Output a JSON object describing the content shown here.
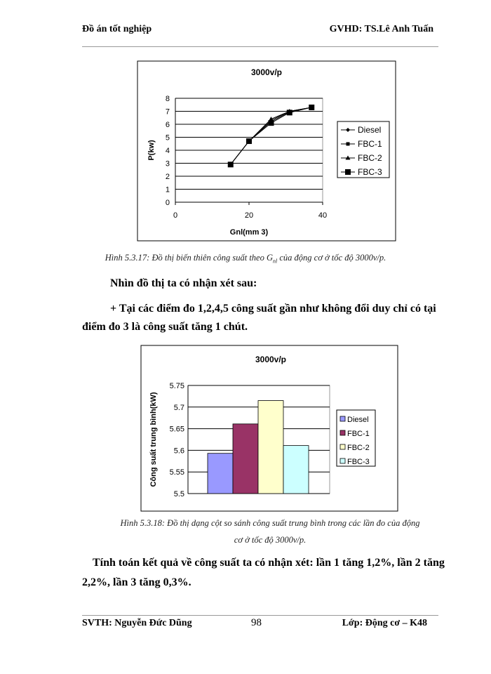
{
  "header": {
    "left": "Đồ án tốt nghiệp",
    "right": "GVHD: TS.Lê Anh Tuấn"
  },
  "figure1": {
    "caption_prefix": "Hình 5.3.17: Đồ thị biến thiên công suất theo ",
    "caption_symbol": "G",
    "caption_subscript": "nl",
    "caption_suffix": " của động cơ ở tốc độ 3000v/p."
  },
  "paragraphs": {
    "p1": "Nhìn đồ thị ta có nhận xét sau:",
    "p2_line1": "+ Tại các điểm đo 1,2,4,5 công suất gần như không đổi duy chỉ có tại",
    "p2_line2": "điểm đo 3 là công suất tăng 1 chút.",
    "p3_line1": "Tính toán kết quả về công suất ta có nhận xét: lần 1 tăng 1,2%, lần 2 tăng",
    "p3_line2": "2,2%, lần 3 tăng 0,3%."
  },
  "figure2": {
    "caption_line1": "Hình 5.3.18: Đồ thị dạng cột so sánh công suất trung bình trong các lần đo của động",
    "caption_line2": "cơ ở tốc độ 3000v/p."
  },
  "footer": {
    "left": "SVTH: Nguyễn Đức Dũng",
    "page": "98",
    "right": "Lớp: Động cơ – K48"
  },
  "chart_data": [
    {
      "type": "line",
      "title": "3000v/p",
      "xlabel": "Gnl(mm 3)",
      "ylabel": "P(kw)",
      "xlim": [
        0,
        40
      ],
      "ylim": [
        0,
        8
      ],
      "xticks": [
        "0",
        "20",
        "40"
      ],
      "yticks": [
        "0",
        "1",
        "2",
        "3",
        "4",
        "5",
        "6",
        "7",
        "8"
      ],
      "grid": "horizontal",
      "legend": "right",
      "x": [
        15,
        20,
        26,
        31,
        37
      ],
      "series": [
        {
          "name": "Diesel",
          "marker": "diamond",
          "values": [
            2.9,
            4.7,
            6.3,
            7.0,
            7.3
          ]
        },
        {
          "name": "FBC-1",
          "marker": "square",
          "values": [
            2.9,
            4.7,
            6.2,
            6.95,
            7.3
          ]
        },
        {
          "name": "FBC-2",
          "marker": "triangle",
          "values": [
            2.9,
            4.7,
            6.4,
            7.0,
            7.3
          ]
        },
        {
          "name": "FBC-3",
          "marker": "big-square",
          "values": [
            2.9,
            4.7,
            6.1,
            6.9,
            7.3
          ]
        }
      ]
    },
    {
      "type": "bar",
      "title": "3000v/p",
      "ylabel": "Công suất trung bình(kW)",
      "ylim": [
        5.5,
        5.75
      ],
      "yticks": [
        "5.5",
        "5.55",
        "5.6",
        "5.65",
        "5.7",
        "5.75"
      ],
      "grid": "horizontal",
      "legend": "right",
      "series": [
        {
          "name": "Diesel",
          "value": 5.593,
          "color": "#9999ff"
        },
        {
          "name": "FBC-1",
          "value": 5.661,
          "color": "#993366"
        },
        {
          "name": "FBC-2",
          "value": 5.715,
          "color": "#ffffcc"
        },
        {
          "name": "FBC-3",
          "value": 5.611,
          "color": "#ccffff"
        }
      ]
    }
  ]
}
